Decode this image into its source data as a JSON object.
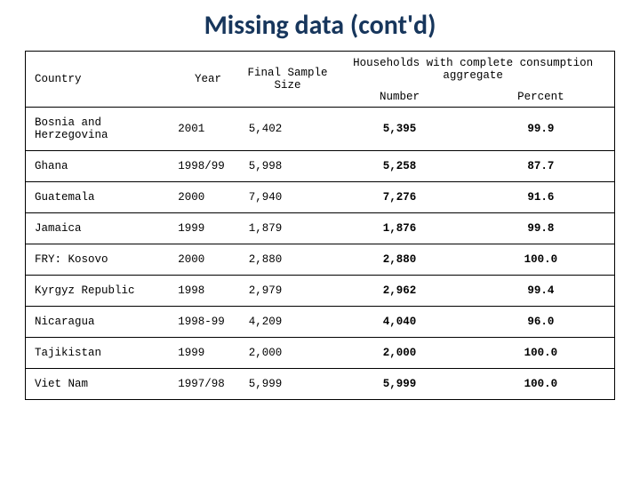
{
  "title": "Missing data (cont'd)",
  "headers": {
    "country": "Country",
    "year": "Year",
    "sample": "Final Sample Size",
    "households": "Households with complete consumption aggregate",
    "number": "Number",
    "percent": "Percent"
  },
  "rows": [
    {
      "country": "Bosnia and Herzegovina",
      "year": "2001",
      "sample": "5,402",
      "number": "5,395",
      "percent": "99.9"
    },
    {
      "country": "Ghana",
      "year": "1998/99",
      "sample": "5,998",
      "number": "5,258",
      "percent": "87.7"
    },
    {
      "country": "Guatemala",
      "year": "2000",
      "sample": "7,940",
      "number": "7,276",
      "percent": "91.6"
    },
    {
      "country": "Jamaica",
      "year": "1999",
      "sample": "1,879",
      "number": "1,876",
      "percent": "99.8"
    },
    {
      "country": "FRY: Kosovo",
      "year": "2000",
      "sample": "2,880",
      "number": "2,880",
      "percent": "100.0"
    },
    {
      "country": "Kyrgyz Republic",
      "year": "1998",
      "sample": "2,979",
      "number": "2,962",
      "percent": "99.4"
    },
    {
      "country": "Nicaragua",
      "year": "1998-99",
      "sample": "4,209",
      "number": "4,040",
      "percent": "96.0"
    },
    {
      "country": "Tajikistan",
      "year": "1999",
      "sample": "2,000",
      "number": "2,000",
      "percent": "100.0"
    },
    {
      "country": "Viet Nam",
      "year": "1997/98",
      "sample": "5,999",
      "number": "5,999",
      "percent": "100.0"
    }
  ],
  "style": {
    "title_color": "#17365c",
    "border_color": "#000000",
    "background": "#ffffff"
  }
}
